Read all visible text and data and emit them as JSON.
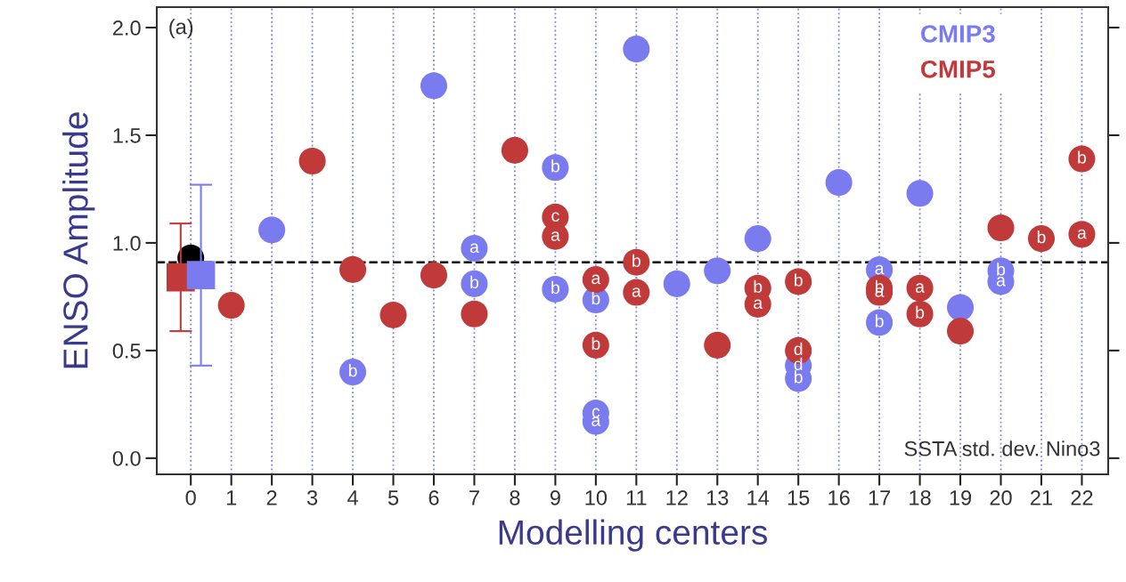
{
  "chart_data": {
    "type": "scatter",
    "xlabel": "Modelling centers",
    "ylabel": "ENSO Amplitude",
    "xlim": [
      -0.84,
      22.65
    ],
    "ylim": [
      -0.075,
      2.095
    ],
    "xticks": [
      0,
      1,
      2,
      3,
      4,
      5,
      6,
      7,
      8,
      9,
      10,
      11,
      12,
      13,
      14,
      15,
      16,
      17,
      18,
      19,
      20,
      21,
      22
    ],
    "yticks": [
      {
        "value": 0,
        "label": "0.0"
      },
      {
        "value": 0.5,
        "label": "0.5"
      },
      {
        "value": 1,
        "label": "1.0"
      },
      {
        "value": 1.5,
        "label": "1.5"
      },
      {
        "value": 2,
        "label": "2.0"
      }
    ],
    "grid": "x",
    "marker": "circle",
    "legend": "top right",
    "ref_lines": [
      {
        "axis": "y",
        "value": 0.91,
        "color": "#000000",
        "line_style": "dashed"
      }
    ],
    "annotations": [
      "(a)",
      "SSTA std. dev. Nino3"
    ],
    "series": [
      {
        "color": "#000000",
        "x": [
          0
        ],
        "values": [
          0.93
        ]
      },
      {
        "color": "#c03a3a",
        "marker": "square",
        "x": [
          -0.25
        ],
        "values": [
          0.84
        ],
        "errors": [
          [
            0.59,
            1.09
          ]
        ]
      },
      {
        "color": "#7b7bf0",
        "marker": "square",
        "x": [
          0.25
        ],
        "values": [
          0.85
        ],
        "errors": [
          [
            0.43,
            1.27
          ]
        ]
      },
      {
        "name": "CMIP3",
        "color": "#7b7bf0",
        "x": [
          2,
          4,
          6,
          7,
          7,
          9,
          9,
          10,
          10,
          10,
          11,
          12,
          13,
          14,
          15,
          15,
          16,
          17,
          17,
          18,
          19,
          20,
          20
        ],
        "values": [
          1.06,
          0.4,
          1.73,
          0.975,
          0.81,
          1.35,
          0.785,
          0.735,
          0.21,
          0.17,
          1.9,
          0.81,
          0.87,
          1.02,
          0.43,
          0.37,
          1.28,
          0.875,
          0.63,
          1.23,
          0.7,
          0.87,
          0.82
        ],
        "value_labels": [
          null,
          "b",
          null,
          "a",
          "b",
          "b",
          "b",
          "b",
          "c",
          "a",
          null,
          null,
          null,
          null,
          "d",
          "b",
          null,
          "a",
          "b",
          null,
          null,
          "b",
          "a"
        ]
      },
      {
        "name": "CMIP5",
        "color": "#c03a3a",
        "x": [
          1,
          3,
          4,
          5,
          6,
          7,
          8,
          9,
          9,
          10,
          10,
          11,
          11,
          13,
          14,
          14,
          15,
          15,
          17,
          17,
          18,
          18,
          19,
          20,
          21,
          22,
          22
        ],
        "values": [
          0.71,
          1.38,
          0.876,
          0.665,
          0.85,
          0.67,
          1.43,
          1.12,
          1.03,
          0.83,
          0.525,
          0.91,
          0.77,
          0.525,
          0.79,
          0.715,
          0.82,
          0.5,
          0.79,
          0.77,
          0.79,
          0.67,
          0.59,
          1.07,
          1.02,
          1.39,
          1.04
        ],
        "value_labels": [
          null,
          null,
          null,
          null,
          null,
          null,
          null,
          "c",
          "a",
          "a",
          "b",
          "b",
          "a",
          null,
          "b",
          "a",
          "b",
          "d",
          "b",
          "a",
          "a",
          "b",
          null,
          null,
          "b",
          "b",
          "a"
        ]
      }
    ]
  }
}
